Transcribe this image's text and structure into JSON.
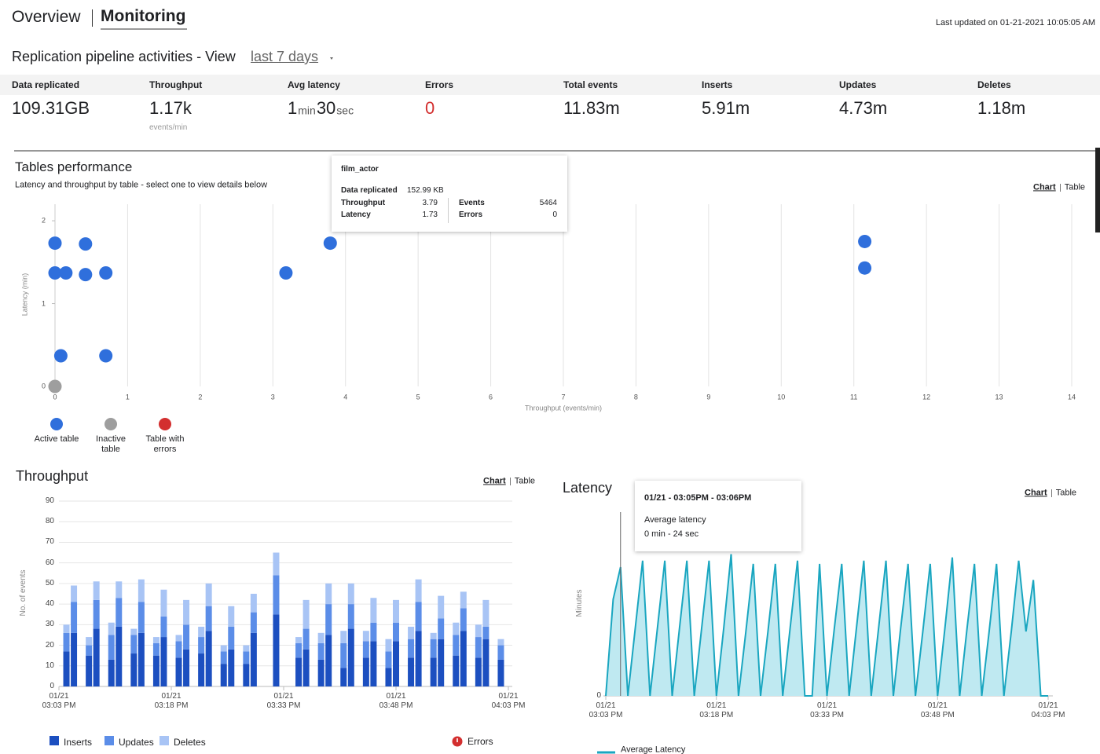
{
  "header": {
    "tabs": [
      "Overview",
      "Monitoring"
    ],
    "last_updated": "Last updated on 01-21-2021 10:05:05 AM"
  },
  "activities": {
    "title": "Replication pipeline activities - View",
    "period": "last 7 days"
  },
  "stats": [
    {
      "label": "Data replicated",
      "value": "109.31GB"
    },
    {
      "label": "Throughput",
      "value": "1.17k",
      "unit": "events/min"
    },
    {
      "label": "Avg latency",
      "value": [
        "1",
        "min",
        "30",
        "sec"
      ]
    },
    {
      "label": "Errors",
      "value": "0",
      "color": "#d32f2f"
    },
    {
      "label": "Total events",
      "value": "11.83m"
    },
    {
      "label": "Inserts",
      "value": "5.91m"
    },
    {
      "label": "Updates",
      "value": "4.73m"
    },
    {
      "label": "Deletes",
      "value": "1.18m"
    }
  ],
  "chart_data": [
    {
      "type": "scatter",
      "title": "Tables performance",
      "subtitle": "Latency and throughput by table - select one to view details below",
      "links": [
        "Chart",
        "Table"
      ],
      "xlabel": "Throughput (events/min)",
      "ylabel": "Latency (min)",
      "xlim": [
        0,
        14
      ],
      "ylim": [
        0,
        2.2
      ],
      "xticks": [
        0,
        1,
        2,
        3,
        4,
        5,
        6,
        7,
        8,
        9,
        10,
        11,
        12,
        13,
        14
      ],
      "yticks": [
        0,
        1,
        2
      ],
      "grid": true,
      "series": [
        {
          "name": "Active table",
          "color": "#2f6fdc",
          "x": [
            0,
            0.42,
            0,
            0.15,
            0.42,
            0.7,
            0.08,
            0.7,
            3.18,
            3.79,
            11.15,
            11.15
          ],
          "values": [
            1.73,
            1.72,
            1.37,
            1.37,
            1.35,
            1.37,
            0.37,
            0.37,
            1.37,
            1.73,
            1.75,
            1.43
          ]
        },
        {
          "name": "Inactive table",
          "color": "#9e9e9e",
          "x": [
            0
          ],
          "values": [
            0
          ]
        },
        {
          "name": "Table with errors",
          "color": "#d32f2f",
          "x": [],
          "values": []
        }
      ],
      "tooltip": {
        "title": "film_actor",
        "data_replicated": {
          "label": "Data replicated",
          "value": "152.99 KB"
        },
        "items": [
          {
            "label": "Throughput",
            "value": "3.79"
          },
          {
            "label": "Latency",
            "value": "1.73"
          },
          {
            "label": "Events",
            "value": "5464"
          },
          {
            "label": "Errors",
            "value": "0"
          }
        ]
      }
    },
    {
      "type": "bar",
      "stacked": true,
      "title": "Throughput",
      "links": [
        "Chart",
        "Table"
      ],
      "ylabel": "No. of events",
      "ylim": [
        0,
        90
      ],
      "yticks": [
        0,
        10,
        20,
        30,
        40,
        50,
        60,
        70,
        80,
        90
      ],
      "grid": true,
      "categories": [
        "01/21\n03:03 PM",
        null,
        null,
        null,
        null,
        null,
        null,
        null,
        null,
        null,
        null,
        null,
        null,
        null,
        null,
        "01/21\n03:18 PM",
        null,
        null,
        null,
        null,
        null,
        null,
        null,
        null,
        null,
        null,
        null,
        null,
        null,
        null,
        "01/21\n03:33 PM",
        null,
        null,
        null,
        null,
        null,
        null,
        null,
        null,
        null,
        null,
        null,
        null,
        null,
        null,
        "01/21\n03:48 PM",
        null,
        null,
        null,
        null,
        null,
        null,
        null,
        null,
        null,
        null,
        null,
        null,
        null,
        null,
        "01/21\n04:03 PM"
      ],
      "series": [
        {
          "name": "Inserts",
          "color": "#1c4fc0",
          "values": [
            null,
            17,
            26,
            null,
            15,
            28,
            null,
            13,
            29,
            null,
            16,
            26,
            null,
            15,
            24,
            null,
            14,
            18,
            null,
            16,
            27,
            null,
            11,
            18,
            null,
            11,
            26,
            null,
            null,
            35,
            null,
            null,
            14,
            18,
            null,
            13,
            25,
            null,
            9,
            28,
            null,
            14,
            22,
            null,
            9,
            22,
            null,
            14,
            27,
            null,
            14,
            23,
            null,
            15,
            27,
            null,
            14,
            23,
            null,
            13,
            null
          ]
        },
        {
          "name": "Updates",
          "color": "#5b8de8",
          "values": [
            null,
            9,
            15,
            null,
            5,
            14,
            null,
            12,
            14,
            null,
            9,
            15,
            null,
            6,
            10,
            null,
            8,
            12,
            null,
            8,
            12,
            null,
            6,
            11,
            null,
            6,
            10,
            null,
            null,
            19,
            null,
            null,
            7,
            10,
            null,
            8,
            15,
            null,
            12,
            12,
            null,
            8,
            9,
            null,
            8,
            9,
            null,
            9,
            14,
            null,
            9,
            10,
            null,
            10,
            11,
            null,
            10,
            6,
            null,
            7,
            null
          ]
        },
        {
          "name": "Deletes",
          "color": "#a8c4f5",
          "values": [
            null,
            4,
            8,
            null,
            4,
            9,
            null,
            6,
            8,
            null,
            3,
            11,
            null,
            3,
            13,
            null,
            3,
            12,
            null,
            5,
            11,
            null,
            3,
            10,
            null,
            3,
            9,
            null,
            null,
            11,
            null,
            null,
            3,
            14,
            null,
            5,
            10,
            null,
            6,
            10,
            null,
            5,
            12,
            null,
            6,
            11,
            null,
            6,
            11,
            null,
            3,
            11,
            null,
            6,
            8,
            null,
            6,
            13,
            null,
            3,
            null
          ]
        }
      ],
      "errors": {
        "name": "Errors",
        "color": "#d32f2f"
      }
    },
    {
      "type": "line",
      "area": true,
      "title": "Latency",
      "links": [
        "Chart",
        "Table"
      ],
      "ylabel": "Minutes",
      "ylim": [
        0,
        0.6
      ],
      "yticks": [
        0
      ],
      "categories": [
        "01/21\n03:03 PM",
        null,
        null,
        null,
        null,
        null,
        null,
        null,
        null,
        null,
        null,
        null,
        null,
        null,
        null,
        "01/21\n03:18 PM",
        null,
        null,
        null,
        null,
        null,
        null,
        null,
        null,
        null,
        null,
        null,
        null,
        null,
        null,
        "01/21\n03:33 PM",
        null,
        null,
        null,
        null,
        null,
        null,
        null,
        null,
        null,
        null,
        null,
        null,
        null,
        null,
        "01/21\n03:48 PM",
        null,
        null,
        null,
        null,
        null,
        null,
        null,
        null,
        null,
        null,
        null,
        null,
        null,
        null,
        "01/21\n04:03 PM"
      ],
      "series": [
        {
          "name": "Average Latency",
          "color": "#1aa6c0",
          "fill": "#bfe9f1",
          "values": [
            0,
            0.3,
            0.4,
            0,
            0.21,
            0.42,
            0,
            0.21,
            0.42,
            0,
            0.21,
            0.42,
            0,
            0.21,
            0.42,
            0,
            0.21,
            0.44,
            0,
            0.2,
            0.41,
            0,
            0.2,
            0.41,
            0,
            0.21,
            0.42,
            0,
            0,
            0.41,
            0,
            0.21,
            0.41,
            0,
            0.21,
            0.42,
            0,
            0.21,
            0.42,
            0,
            0.21,
            0.41,
            0,
            0.2,
            0.41,
            0,
            0.21,
            0.43,
            0,
            0.21,
            0.41,
            0,
            0.2,
            0.41,
            0,
            0.2,
            0.42,
            0.2,
            0.36,
            0,
            0
          ]
        }
      ],
      "tooltip": {
        "title": "01/21 - 03:05PM - 03:06PM",
        "label": "Average latency",
        "value": "0 min - 24 sec"
      }
    }
  ]
}
